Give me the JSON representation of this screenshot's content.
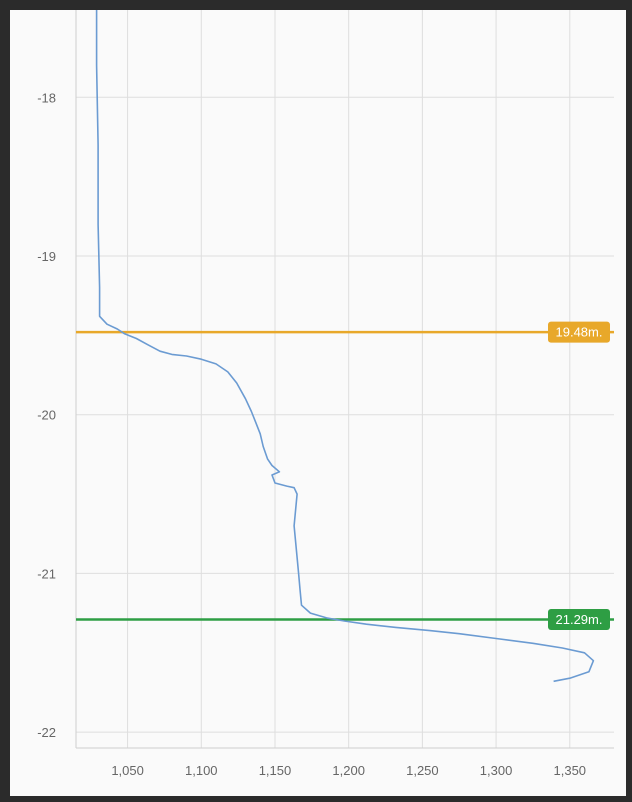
{
  "chart_data": {
    "type": "line",
    "title": "",
    "xlabel": "",
    "ylabel": "",
    "xlim": [
      1015,
      1380
    ],
    "ylim": [
      -22.1,
      -17.45
    ],
    "x_ticks": [
      1050,
      1100,
      1150,
      1200,
      1250,
      1300,
      1350
    ],
    "x_tick_labels": [
      "1,050",
      "1,100",
      "1,150",
      "1,200",
      "1,250",
      "1,300",
      "1,350"
    ],
    "y_ticks": [
      -18,
      -19,
      -20,
      -21,
      -22
    ],
    "y_tick_labels": [
      "-18",
      "-19",
      "-20",
      "-21",
      "-22"
    ],
    "grid": true,
    "series": [
      {
        "color": "#6b9bd2",
        "points": [
          [
            1029,
            -17.45
          ],
          [
            1029,
            -17.8
          ],
          [
            1030,
            -18.3
          ],
          [
            1030,
            -18.8
          ],
          [
            1031,
            -19.2
          ],
          [
            1031,
            -19.38
          ],
          [
            1036,
            -19.43
          ],
          [
            1043,
            -19.46
          ],
          [
            1048,
            -19.49
          ],
          [
            1056,
            -19.52
          ],
          [
            1064,
            -19.56
          ],
          [
            1072,
            -19.6
          ],
          [
            1080,
            -19.62
          ],
          [
            1090,
            -19.63
          ],
          [
            1100,
            -19.65
          ],
          [
            1110,
            -19.68
          ],
          [
            1118,
            -19.73
          ],
          [
            1124,
            -19.8
          ],
          [
            1130,
            -19.9
          ],
          [
            1134,
            -19.98
          ],
          [
            1137,
            -20.05
          ],
          [
            1140,
            -20.12
          ],
          [
            1142,
            -20.2
          ],
          [
            1145,
            -20.28
          ],
          [
            1148,
            -20.32
          ],
          [
            1153,
            -20.36
          ],
          [
            1148,
            -20.38
          ],
          [
            1150,
            -20.43
          ],
          [
            1158,
            -20.45
          ],
          [
            1163,
            -20.46
          ],
          [
            1165,
            -20.5
          ],
          [
            1164,
            -20.6
          ],
          [
            1163,
            -20.7
          ],
          [
            1164,
            -20.8
          ],
          [
            1165,
            -20.9
          ],
          [
            1166,
            -21.0
          ],
          [
            1167,
            -21.1
          ],
          [
            1168,
            -21.2
          ],
          [
            1174,
            -21.25
          ],
          [
            1185,
            -21.28
          ],
          [
            1197,
            -21.3
          ],
          [
            1212,
            -21.32
          ],
          [
            1232,
            -21.34
          ],
          [
            1255,
            -21.36
          ],
          [
            1275,
            -21.38
          ],
          [
            1300,
            -21.41
          ],
          [
            1325,
            -21.44
          ],
          [
            1345,
            -21.47
          ],
          [
            1360,
            -21.5
          ],
          [
            1366,
            -21.55
          ],
          [
            1363,
            -21.62
          ],
          [
            1350,
            -21.66
          ],
          [
            1339,
            -21.68
          ]
        ]
      }
    ],
    "markers": [
      {
        "y": -19.48,
        "label": "19.48m.",
        "color": "#e8a82a"
      },
      {
        "y": -21.29,
        "label": "21.29m.",
        "color": "#2e9e44"
      }
    ]
  }
}
